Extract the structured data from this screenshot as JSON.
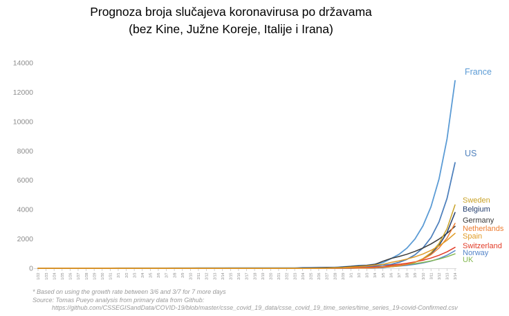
{
  "title": {
    "line1": "Prognoza broja slučajeva koronavirusa po državama",
    "line2": "(bez Kine, Južne Koreje, Italije i Irana)"
  },
  "footer": {
    "footnote": "* Based on using the growth rate between 3/6 and 3/7 for 7 more days",
    "source_line": "Source: Tomas Pueyo analysis from primary data from Github:",
    "source_url": "https://github.com/CSSEGISandData/COVID-19/blob/master/csse_covid_19_data/csse_covid_19_time_series/time_series_19-covid-Confirmed.csv"
  },
  "colors": {
    "axis_text": "#8C8C8C",
    "axis_line": "#D9D9D9",
    "tick": "#BFBFBF",
    "title_text": "#000000",
    "footnote_text": "#9A9A9A"
  },
  "chart_data": {
    "type": "line",
    "title": "Prognoza broja slučajeva koronavirusa po državama (bez Kine, Južne Koreje, Italije i Irana)",
    "xlabel": "",
    "ylabel": "",
    "ylim": [
      0,
      14000
    ],
    "yticks": [
      0,
      2000,
      4000,
      6000,
      8000,
      10000,
      12000,
      14000
    ],
    "grid": false,
    "legend_position": "line-end-labels-right",
    "x_categories": [
      "1/22",
      "1/23",
      "1/24",
      "1/25",
      "1/26",
      "1/27",
      "1/28",
      "1/29",
      "1/30",
      "1/31",
      "2/1",
      "2/2",
      "2/3",
      "2/4",
      "2/5",
      "2/6",
      "2/7",
      "2/8",
      "2/9",
      "2/10",
      "2/11",
      "2/12",
      "2/13",
      "2/14",
      "2/15",
      "2/16",
      "2/17",
      "2/18",
      "2/19",
      "2/20",
      "2/21",
      "2/22",
      "2/23",
      "2/24",
      "2/25",
      "2/26",
      "2/27",
      "2/28",
      "2/29",
      "3/1",
      "3/2",
      "3/3",
      "3/4",
      "3/5",
      "3/6",
      "3/7",
      "3/8",
      "3/9",
      "3/10",
      "3/11",
      "3/12",
      "3/13",
      "3/14"
    ],
    "series": [
      {
        "name": "France",
        "color": "#5B9BD5",
        "values": [
          0,
          0,
          2,
          3,
          3,
          3,
          4,
          5,
          5,
          5,
          6,
          6,
          6,
          6,
          6,
          6,
          6,
          11,
          11,
          11,
          11,
          11,
          11,
          11,
          12,
          12,
          12,
          12,
          12,
          12,
          12,
          12,
          12,
          12,
          14,
          18,
          38,
          57,
          100,
          130,
          191,
          204,
          285,
          377,
          653,
          949,
          1376,
          1995,
          2893,
          4195,
          6083,
          8820,
          12790
        ]
      },
      {
        "name": "US",
        "color": "#4F81BD",
        "values": [
          1,
          1,
          2,
          2,
          5,
          5,
          5,
          5,
          5,
          7,
          8,
          8,
          11,
          11,
          11,
          11,
          11,
          11,
          11,
          11,
          12,
          12,
          13,
          13,
          13,
          13,
          13,
          13,
          13,
          13,
          15,
          15,
          15,
          51,
          51,
          57,
          58,
          60,
          68,
          74,
          98,
          118,
          149,
          217,
          262,
          402,
          607,
          917,
          1385,
          2091,
          3157,
          4767,
          7198
        ]
      },
      {
        "name": "Norway",
        "color": "#5585C9",
        "values": [
          0,
          0,
          0,
          0,
          0,
          0,
          0,
          0,
          0,
          0,
          0,
          0,
          0,
          0,
          0,
          0,
          0,
          0,
          0,
          0,
          0,
          0,
          0,
          0,
          0,
          0,
          0,
          0,
          0,
          0,
          0,
          0,
          0,
          0,
          0,
          1,
          4,
          6,
          15,
          19,
          25,
          33,
          56,
          87,
          108,
          147,
          198,
          268,
          362,
          488,
          659,
          890,
          1202
        ]
      },
      {
        "name": "UK",
        "color": "#84B850",
        "values": [
          0,
          0,
          0,
          0,
          0,
          0,
          0,
          0,
          0,
          2,
          2,
          2,
          2,
          2,
          2,
          2,
          3,
          3,
          3,
          8,
          8,
          9,
          9,
          9,
          9,
          9,
          9,
          9,
          9,
          9,
          9,
          9,
          9,
          13,
          13,
          13,
          15,
          20,
          23,
          36,
          40,
          51,
          85,
          115,
          163,
          206,
          258,
          322,
          403,
          503,
          629,
          786,
          983
        ]
      },
      {
        "name": "Switzerland",
        "color": "#E23C28",
        "values": [
          0,
          0,
          0,
          0,
          0,
          0,
          0,
          0,
          0,
          0,
          0,
          0,
          0,
          0,
          0,
          0,
          0,
          0,
          0,
          0,
          0,
          0,
          0,
          0,
          0,
          0,
          0,
          0,
          0,
          0,
          0,
          0,
          0,
          0,
          1,
          1,
          8,
          8,
          18,
          27,
          42,
          56,
          90,
          114,
          214,
          268,
          340,
          432,
          549,
          697,
          885,
          1124,
          1428
        ]
      },
      {
        "name": "Germany",
        "color": "#3B3B3B",
        "values": [
          0,
          0,
          0,
          0,
          0,
          1,
          4,
          4,
          4,
          5,
          8,
          10,
          12,
          12,
          12,
          12,
          13,
          13,
          14,
          14,
          16,
          16,
          16,
          16,
          16,
          16,
          16,
          16,
          16,
          16,
          16,
          16,
          16,
          16,
          17,
          27,
          46,
          48,
          79,
          130,
          159,
          196,
          262,
          482,
          670,
          799,
          959,
          1151,
          1381,
          1657,
          1988,
          2386,
          2863
        ]
      },
      {
        "name": "Belgium",
        "color": "#26406F",
        "values": [
          0,
          0,
          0,
          0,
          0,
          0,
          0,
          0,
          0,
          0,
          0,
          0,
          0,
          1,
          1,
          1,
          1,
          1,
          1,
          1,
          1,
          1,
          1,
          1,
          1,
          1,
          1,
          1,
          1,
          1,
          1,
          1,
          1,
          1,
          1,
          1,
          1,
          1,
          1,
          2,
          8,
          13,
          23,
          50,
          109,
          169,
          264,
          411,
          642,
          1001,
          1562,
          2437,
          3802
        ]
      },
      {
        "name": "Sweden",
        "color": "#C9A227",
        "values": [
          0,
          0,
          0,
          0,
          0,
          0,
          0,
          0,
          0,
          1,
          1,
          1,
          1,
          1,
          1,
          1,
          1,
          1,
          1,
          1,
          1,
          1,
          1,
          1,
          1,
          1,
          1,
          1,
          1,
          1,
          1,
          1,
          1,
          1,
          1,
          2,
          7,
          7,
          12,
          14,
          15,
          21,
          35,
          94,
          101,
          161,
          258,
          412,
          660,
          1055,
          1688,
          2701,
          4322
        ]
      },
      {
        "name": "Netherlands",
        "color": "#ED7D31",
        "values": [
          0,
          0,
          0,
          0,
          0,
          0,
          0,
          0,
          0,
          0,
          0,
          0,
          0,
          0,
          0,
          0,
          0,
          0,
          0,
          0,
          0,
          0,
          0,
          0,
          0,
          0,
          0,
          0,
          0,
          0,
          0,
          0,
          0,
          0,
          0,
          0,
          1,
          2,
          7,
          10,
          18,
          24,
          38,
          82,
          128,
          188,
          280,
          417,
          622,
          927,
          1381,
          2058,
          3066
        ]
      },
      {
        "name": "Spain",
        "color": "#E09B25",
        "values": [
          0,
          0,
          0,
          0,
          0,
          0,
          0,
          0,
          0,
          0,
          1,
          1,
          1,
          1,
          1,
          1,
          1,
          1,
          2,
          2,
          2,
          2,
          2,
          2,
          2,
          2,
          2,
          2,
          2,
          2,
          2,
          2,
          2,
          2,
          6,
          13,
          15,
          32,
          45,
          84,
          120,
          165,
          222,
          259,
          400,
          500,
          625,
          781,
          977,
          1221,
          1526,
          1907,
          2384
        ]
      }
    ]
  }
}
